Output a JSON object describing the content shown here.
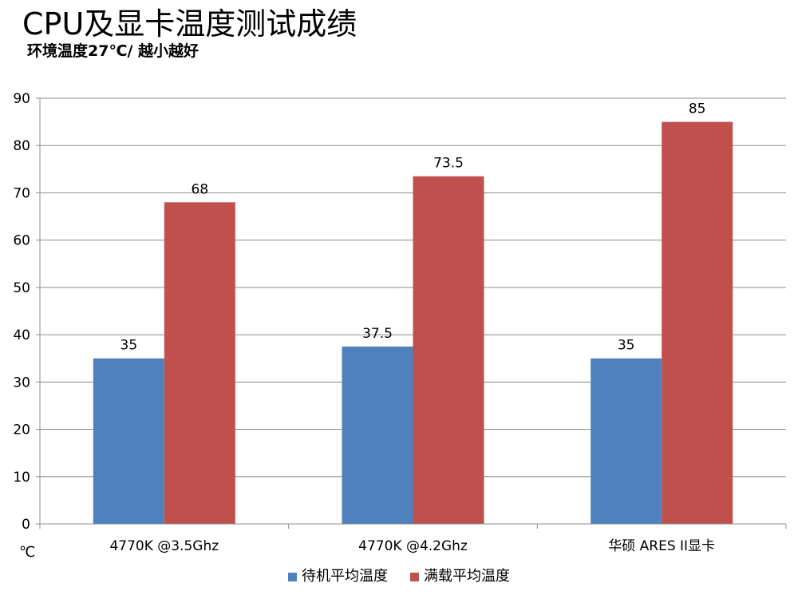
{
  "title": "CPU及显卡温度测试成绩",
  "subtitle": "环境温度27℃/ 越小越好",
  "chart_data": {
    "type": "bar",
    "title": "CPU及显卡温度测试成绩",
    "subtitle": "环境温度27℃/ 越小越好",
    "categories": [
      "4770K @3.5Ghz",
      "4770K @4.2Ghz",
      "华硕 ARES II显卡"
    ],
    "series": [
      {
        "name": "待机平均温度",
        "values": [
          35,
          37.5,
          35
        ],
        "color": "#4f81bd"
      },
      {
        "name": "满载平均温度",
        "values": [
          68,
          73.5,
          85
        ],
        "color": "#c0504d"
      }
    ],
    "ylim": [
      0,
      90
    ],
    "yticks": [
      0,
      10,
      20,
      30,
      40,
      50,
      60,
      70,
      80,
      90
    ],
    "ylabel": "℃",
    "xlabel": "",
    "grid": true,
    "legend_position": "bottom",
    "data_labels": true
  }
}
